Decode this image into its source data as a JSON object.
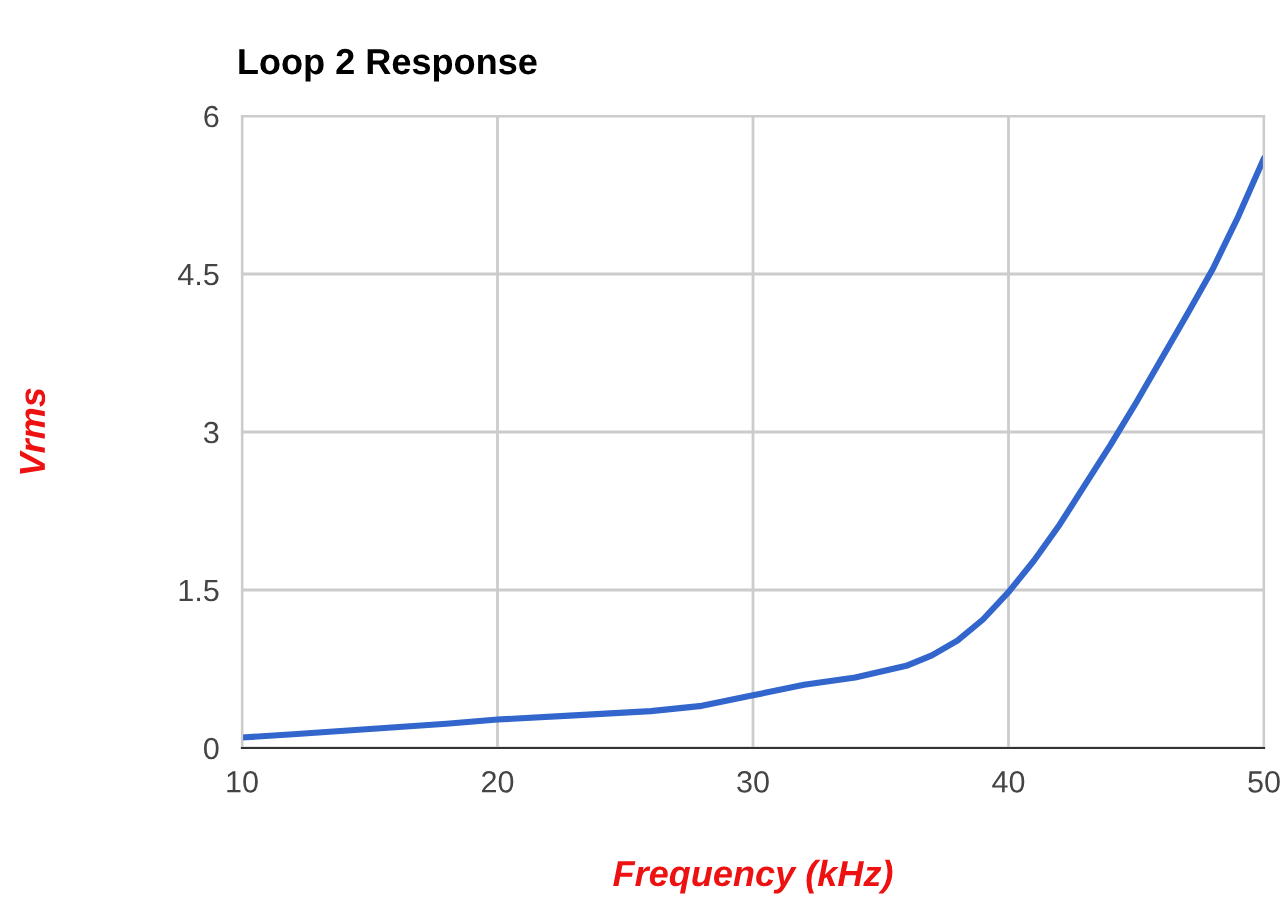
{
  "chart_data": {
    "type": "line",
    "title": "Loop 2 Response",
    "xlabel": "Frequency (kHz)",
    "ylabel": "Vrms",
    "x": [
      10,
      12,
      15,
      18,
      20,
      23,
      26,
      28,
      30,
      32,
      34,
      36,
      37,
      38,
      39,
      40,
      41,
      42,
      43,
      44,
      45,
      46,
      47,
      48,
      49,
      50
    ],
    "series": [
      {
        "color": "#3366cc",
        "values": [
          0.1,
          0.13,
          0.18,
          0.23,
          0.27,
          0.31,
          0.35,
          0.4,
          0.5,
          0.6,
          0.67,
          0.78,
          0.88,
          1.02,
          1.22,
          1.48,
          1.78,
          2.12,
          2.5,
          2.88,
          3.28,
          3.7,
          4.12,
          4.55,
          5.05,
          5.6
        ]
      }
    ],
    "xlim": [
      10,
      50
    ],
    "xticks": [
      10,
      20,
      30,
      40,
      50
    ],
    "ylim": [
      0,
      6
    ],
    "yticks": [
      0,
      1.5,
      3,
      4.5,
      6
    ],
    "grid": true,
    "legend": false
  }
}
